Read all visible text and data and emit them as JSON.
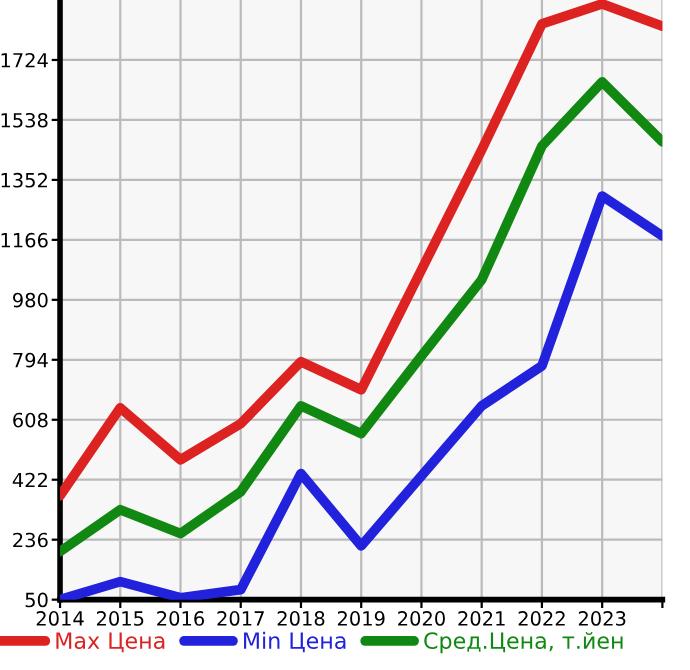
{
  "chart_data": {
    "type": "line",
    "x": [
      2014,
      2015,
      2016,
      2017,
      2018,
      2019,
      2020,
      2021,
      2022,
      2023,
      2024
    ],
    "series": [
      {
        "name": "Max Цена",
        "color": "#dd2222",
        "values": [
          372,
          645,
          484,
          596,
          788,
          701,
          1073,
          1445,
          1836,
          1898,
          1829
        ]
      },
      {
        "name": "Min Цена",
        "color": "#2222dd",
        "values": [
          50,
          106,
          56,
          81,
          441,
          217,
          434,
          651,
          775,
          1302,
          1178
        ]
      },
      {
        "name": "Сред.Цена, т.йен",
        "color": "#118811",
        "values": [
          199,
          329,
          255,
          385,
          651,
          565,
          806,
          1042,
          1457,
          1656,
          1470
        ]
      }
    ],
    "xlim": [
      2014,
      2024
    ],
    "xticks": [
      2014,
      2015,
      2016,
      2017,
      2018,
      2019,
      2020,
      2021,
      2022,
      2023,
      {
        "value": 2024,
        "label": null
      }
    ],
    "ylim": [
      50,
      1910
    ],
    "yticks": [
      50,
      236,
      422,
      608,
      794,
      980,
      1166,
      1352,
      1538,
      1724
    ],
    "grid": true,
    "legend": "bottom",
    "marker": "none",
    "line_style": "solid"
  }
}
